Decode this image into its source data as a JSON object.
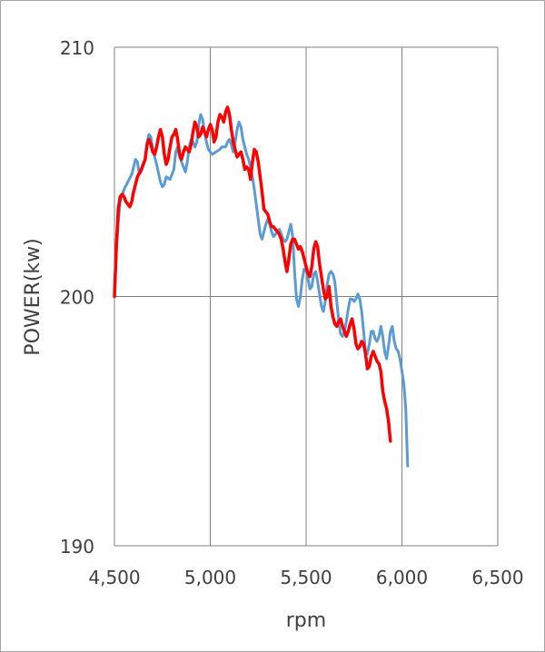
{
  "chart_data": {
    "type": "line",
    "xlabel": "rpm",
    "ylabel": "POWER(kw)",
    "xlim": [
      4500,
      6500
    ],
    "ylim": [
      190,
      210
    ],
    "x_ticks": [
      4500,
      5000,
      5500,
      6000,
      6500
    ],
    "x_tick_labels": [
      "4,500",
      "5,000",
      "5,500",
      "6,000",
      "6,500"
    ],
    "y_ticks": [
      190,
      200,
      210
    ],
    "y_tick_labels": [
      "190",
      "200",
      "210"
    ],
    "grid": true,
    "legend": "none",
    "series": [
      {
        "color": "#5b9bd5",
        "points": [
          [
            4500,
            200.0
          ],
          [
            4510,
            201.8
          ],
          [
            4520,
            203.0
          ],
          [
            4530,
            203.8
          ],
          [
            4550,
            204.3
          ],
          [
            4570,
            204.6
          ],
          [
            4590,
            204.9
          ],
          [
            4610,
            205.5
          ],
          [
            4620,
            205.4
          ],
          [
            4630,
            204.9
          ],
          [
            4640,
            205.0
          ],
          [
            4660,
            205.5
          ],
          [
            4670,
            206.2
          ],
          [
            4680,
            206.5
          ],
          [
            4690,
            206.4
          ],
          [
            4700,
            205.9
          ],
          [
            4710,
            205.6
          ],
          [
            4720,
            205.3
          ],
          [
            4740,
            204.6
          ],
          [
            4750,
            204.4
          ],
          [
            4760,
            204.5
          ],
          [
            4770,
            204.8
          ],
          [
            4790,
            204.7
          ],
          [
            4810,
            205.1
          ],
          [
            4820,
            205.8
          ],
          [
            4830,
            206.0
          ],
          [
            4840,
            205.6
          ],
          [
            4860,
            205.2
          ],
          [
            4870,
            205.0
          ],
          [
            4880,
            205.4
          ],
          [
            4890,
            206.0
          ],
          [
            4900,
            206.3
          ],
          [
            4910,
            206.2
          ],
          [
            4920,
            206.0
          ],
          [
            4930,
            206.2
          ],
          [
            4940,
            206.9
          ],
          [
            4950,
            207.3
          ],
          [
            4960,
            207.1
          ],
          [
            4970,
            206.6
          ],
          [
            4980,
            206.2
          ],
          [
            4990,
            205.9
          ],
          [
            5010,
            205.7
          ],
          [
            5030,
            205.8
          ],
          [
            5050,
            205.9
          ],
          [
            5060,
            206.0
          ],
          [
            5080,
            206.0
          ],
          [
            5090,
            206.2
          ],
          [
            5100,
            206.3
          ],
          [
            5110,
            206.1
          ],
          [
            5120,
            205.8
          ],
          [
            5130,
            206.2
          ],
          [
            5140,
            206.7
          ],
          [
            5150,
            207.0
          ],
          [
            5160,
            206.8
          ],
          [
            5170,
            206.3
          ],
          [
            5180,
            206.0
          ],
          [
            5190,
            205.7
          ],
          [
            5200,
            205.5
          ],
          [
            5210,
            205.2
          ],
          [
            5220,
            204.8
          ],
          [
            5230,
            204.3
          ],
          [
            5240,
            203.7
          ],
          [
            5250,
            203.1
          ],
          [
            5260,
            202.5
          ],
          [
            5270,
            202.3
          ],
          [
            5280,
            202.6
          ],
          [
            5290,
            202.9
          ],
          [
            5300,
            203.1
          ],
          [
            5310,
            202.9
          ],
          [
            5320,
            202.6
          ],
          [
            5330,
            202.4
          ],
          [
            5340,
            202.5
          ],
          [
            5360,
            202.7
          ],
          [
            5370,
            202.5
          ],
          [
            5380,
            202.3
          ],
          [
            5390,
            202.2
          ],
          [
            5400,
            202.3
          ],
          [
            5410,
            202.6
          ],
          [
            5420,
            202.9
          ],
          [
            5430,
            202.4
          ],
          [
            5440,
            201.0
          ],
          [
            5450,
            199.9
          ],
          [
            5460,
            199.6
          ],
          [
            5470,
            200.0
          ],
          [
            5480,
            200.7
          ],
          [
            5490,
            201.1
          ],
          [
            5500,
            201.1
          ],
          [
            5510,
            200.7
          ],
          [
            5520,
            200.3
          ],
          [
            5530,
            200.4
          ],
          [
            5540,
            200.9
          ],
          [
            5550,
            201.0
          ],
          [
            5560,
            200.6
          ],
          [
            5570,
            200.1
          ],
          [
            5580,
            199.6
          ],
          [
            5590,
            199.4
          ],
          [
            5600,
            199.8
          ],
          [
            5610,
            200.5
          ],
          [
            5620,
            200.9
          ],
          [
            5630,
            201.0
          ],
          [
            5640,
            200.9
          ],
          [
            5650,
            200.6
          ],
          [
            5660,
            199.8
          ],
          [
            5670,
            199.0
          ],
          [
            5680,
            198.5
          ],
          [
            5690,
            198.4
          ],
          [
            5700,
            198.6
          ],
          [
            5710,
            199.0
          ],
          [
            5720,
            199.5
          ],
          [
            5730,
            199.9
          ],
          [
            5740,
            199.9
          ],
          [
            5750,
            199.8
          ],
          [
            5760,
            199.9
          ],
          [
            5770,
            200.1
          ],
          [
            5780,
            199.9
          ],
          [
            5790,
            199.4
          ],
          [
            5800,
            198.6
          ],
          [
            5810,
            197.8
          ],
          [
            5820,
            197.7
          ],
          [
            5830,
            198.1
          ],
          [
            5840,
            198.6
          ],
          [
            5850,
            198.6
          ],
          [
            5860,
            198.3
          ],
          [
            5870,
            198.2
          ],
          [
            5880,
            198.4
          ],
          [
            5890,
            198.8
          ],
          [
            5900,
            198.4
          ],
          [
            5910,
            197.8
          ],
          [
            5920,
            197.5
          ],
          [
            5930,
            198.0
          ],
          [
            5940,
            198.6
          ],
          [
            5950,
            198.8
          ],
          [
            5960,
            198.2
          ],
          [
            5970,
            197.9
          ],
          [
            5980,
            197.8
          ],
          [
            5990,
            197.5
          ],
          [
            6000,
            197.0
          ],
          [
            6010,
            196.5
          ],
          [
            6020,
            195.5
          ],
          [
            6030,
            193.2
          ]
        ]
      },
      {
        "color": "#ff0000",
        "points": [
          [
            4500,
            200.0
          ],
          [
            4510,
            202.0
          ],
          [
            4520,
            203.5
          ],
          [
            4530,
            204.0
          ],
          [
            4540,
            204.1
          ],
          [
            4550,
            204.0
          ],
          [
            4560,
            203.8
          ],
          [
            4570,
            203.7
          ],
          [
            4580,
            203.6
          ],
          [
            4590,
            203.8
          ],
          [
            4600,
            204.2
          ],
          [
            4620,
            204.8
          ],
          [
            4640,
            205.1
          ],
          [
            4660,
            205.5
          ],
          [
            4670,
            206.1
          ],
          [
            4680,
            206.3
          ],
          [
            4690,
            206.1
          ],
          [
            4700,
            205.8
          ],
          [
            4710,
            205.7
          ],
          [
            4720,
            206.0
          ],
          [
            4730,
            206.4
          ],
          [
            4740,
            206.7
          ],
          [
            4750,
            206.4
          ],
          [
            4760,
            205.7
          ],
          [
            4770,
            205.3
          ],
          [
            4780,
            205.5
          ],
          [
            4790,
            206.0
          ],
          [
            4800,
            206.4
          ],
          [
            4810,
            206.5
          ],
          [
            4820,
            206.7
          ],
          [
            4830,
            206.3
          ],
          [
            4840,
            205.7
          ],
          [
            4850,
            205.5
          ],
          [
            4860,
            205.8
          ],
          [
            4870,
            206.0
          ],
          [
            4880,
            205.9
          ],
          [
            4890,
            205.8
          ],
          [
            4900,
            206.1
          ],
          [
            4910,
            206.6
          ],
          [
            4920,
            207.0
          ],
          [
            4930,
            206.8
          ],
          [
            4940,
            206.4
          ],
          [
            4950,
            206.5
          ],
          [
            4960,
            206.8
          ],
          [
            4970,
            206.6
          ],
          [
            4980,
            206.4
          ],
          [
            4990,
            206.7
          ],
          [
            5000,
            206.9
          ],
          [
            5010,
            206.7
          ],
          [
            5020,
            206.2
          ],
          [
            5030,
            206.4
          ],
          [
            5040,
            207.0
          ],
          [
            5050,
            207.3
          ],
          [
            5060,
            207.2
          ],
          [
            5070,
            207.0
          ],
          [
            5080,
            207.4
          ],
          [
            5090,
            207.6
          ],
          [
            5100,
            207.3
          ],
          [
            5110,
            206.7
          ],
          [
            5120,
            206.2
          ],
          [
            5130,
            205.9
          ],
          [
            5140,
            205.6
          ],
          [
            5150,
            205.7
          ],
          [
            5160,
            205.8
          ],
          [
            5170,
            205.5
          ],
          [
            5180,
            205.1
          ],
          [
            5190,
            205.2
          ],
          [
            5200,
            205.1
          ],
          [
            5210,
            204.7
          ],
          [
            5220,
            205.4
          ],
          [
            5230,
            205.9
          ],
          [
            5240,
            205.8
          ],
          [
            5250,
            205.4
          ],
          [
            5260,
            204.8
          ],
          [
            5270,
            204.2
          ],
          [
            5280,
            203.5
          ],
          [
            5290,
            203.4
          ],
          [
            5300,
            203.3
          ],
          [
            5310,
            203.0
          ],
          [
            5320,
            202.8
          ],
          [
            5330,
            202.8
          ],
          [
            5340,
            202.7
          ],
          [
            5350,
            202.6
          ],
          [
            5360,
            202.5
          ],
          [
            5370,
            202.3
          ],
          [
            5380,
            201.9
          ],
          [
            5390,
            201.4
          ],
          [
            5400,
            201.0
          ],
          [
            5410,
            201.5
          ],
          [
            5420,
            202.1
          ],
          [
            5430,
            202.3
          ],
          [
            5440,
            202.3
          ],
          [
            5450,
            202.1
          ],
          [
            5460,
            201.9
          ],
          [
            5470,
            202.0
          ],
          [
            5480,
            201.8
          ],
          [
            5490,
            201.5
          ],
          [
            5500,
            201.2
          ],
          [
            5510,
            200.9
          ],
          [
            5520,
            200.8
          ],
          [
            5530,
            201.2
          ],
          [
            5540,
            201.9
          ],
          [
            5550,
            202.2
          ],
          [
            5560,
            202.0
          ],
          [
            5570,
            201.3
          ],
          [
            5580,
            200.8
          ],
          [
            5590,
            200.3
          ],
          [
            5600,
            199.9
          ],
          [
            5610,
            200.0
          ],
          [
            5620,
            200.4
          ],
          [
            5630,
            199.6
          ],
          [
            5640,
            199.2
          ],
          [
            5650,
            198.9
          ],
          [
            5660,
            198.8
          ],
          [
            5670,
            199.0
          ],
          [
            5680,
            199.1
          ],
          [
            5690,
            198.8
          ],
          [
            5700,
            198.6
          ],
          [
            5710,
            198.4
          ],
          [
            5720,
            198.6
          ],
          [
            5730,
            198.9
          ],
          [
            5740,
            199.1
          ],
          [
            5750,
            198.7
          ],
          [
            5760,
            198.1
          ],
          [
            5770,
            197.9
          ],
          [
            5780,
            198.0
          ],
          [
            5790,
            198.2
          ],
          [
            5800,
            198.1
          ],
          [
            5810,
            197.7
          ],
          [
            5820,
            197.1
          ],
          [
            5830,
            197.2
          ],
          [
            5840,
            197.6
          ],
          [
            5850,
            197.8
          ],
          [
            5860,
            197.6
          ],
          [
            5870,
            197.4
          ],
          [
            5880,
            197.3
          ],
          [
            5890,
            197.0
          ],
          [
            5900,
            196.2
          ],
          [
            5910,
            195.8
          ],
          [
            5920,
            195.5
          ],
          [
            5930,
            195.0
          ],
          [
            5940,
            194.2
          ]
        ]
      }
    ]
  }
}
